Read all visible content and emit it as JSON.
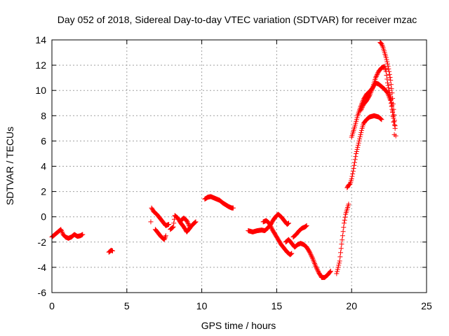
{
  "chart_data": {
    "type": "scatter",
    "title": "Day 052 of 2018, Sidereal Day-to-day VTEC variation (SDTVAR) for receiver mzac",
    "xlabel": "GPS time / hours",
    "ylabel": "SDTVAR / TECUs",
    "xlim": [
      0,
      25
    ],
    "ylim": [
      -6,
      14
    ],
    "xticks": [
      0,
      5,
      10,
      15,
      20,
      25
    ],
    "yticks": [
      -6,
      -4,
      -2,
      0,
      2,
      4,
      6,
      8,
      10,
      12,
      14
    ],
    "grid": true,
    "marker": "+",
    "color": "#ff0000",
    "segments": [
      [
        [
          0.0,
          -1.6
        ],
        [
          0.3,
          -1.3
        ],
        [
          0.5,
          -1.1
        ],
        [
          0.6,
          -1.0
        ],
        [
          0.75,
          -1.4
        ],
        [
          0.9,
          -1.6
        ],
        [
          1.1,
          -1.7
        ],
        [
          1.3,
          -1.6
        ],
        [
          1.5,
          -1.4
        ],
        [
          1.7,
          -1.55
        ],
        [
          1.9,
          -1.5
        ],
        [
          2.05,
          -1.4
        ]
      ],
      [
        [
          3.8,
          -2.8
        ],
        [
          3.95,
          -2.65
        ],
        [
          4.05,
          -2.7
        ]
      ],
      [
        [
          6.6,
          -0.4
        ],
        [
          6.65,
          0.7
        ],
        [
          6.8,
          0.4
        ],
        [
          7.0,
          0.2
        ],
        [
          7.2,
          -0.1
        ],
        [
          7.4,
          -0.4
        ],
        [
          7.6,
          -0.7
        ],
        [
          7.8,
          -0.6
        ]
      ],
      [
        [
          6.9,
          -1.0
        ],
        [
          7.1,
          -1.3
        ],
        [
          7.3,
          -1.6
        ],
        [
          7.5,
          -1.8
        ],
        [
          7.6,
          -1.5
        ]
      ],
      [
        [
          7.9,
          -1.0
        ],
        [
          8.1,
          -0.8
        ],
        [
          8.2,
          0.1
        ],
        [
          8.4,
          -0.1
        ],
        [
          8.6,
          -0.5
        ],
        [
          8.8,
          -0.8
        ],
        [
          9.0,
          -1.2
        ],
        [
          9.2,
          -0.9
        ],
        [
          9.4,
          -0.6
        ],
        [
          9.6,
          -0.4
        ]
      ],
      [
        [
          8.6,
          -0.3
        ],
        [
          8.8,
          -0.1
        ],
        [
          9.0,
          -0.3
        ],
        [
          9.2,
          -0.8
        ]
      ],
      [
        [
          10.2,
          1.4
        ],
        [
          10.4,
          1.55
        ],
        [
          10.6,
          1.6
        ],
        [
          10.8,
          1.5
        ],
        [
          11.0,
          1.4
        ],
        [
          11.2,
          1.3
        ],
        [
          11.4,
          1.1
        ],
        [
          11.6,
          0.95
        ],
        [
          11.8,
          0.8
        ],
        [
          12.0,
          0.7
        ],
        [
          12.1,
          0.7
        ]
      ],
      [
        [
          13.1,
          -1.1
        ],
        [
          13.4,
          -1.2
        ],
        [
          13.7,
          -1.1
        ],
        [
          14.0,
          -1.05
        ],
        [
          14.2,
          -1.1
        ],
        [
          14.4,
          -0.9
        ],
        [
          14.6,
          -0.6
        ],
        [
          14.8,
          -0.2
        ],
        [
          15.0,
          0.1
        ],
        [
          15.1,
          0.2
        ],
        [
          15.3,
          0.0
        ],
        [
          15.5,
          -0.3
        ],
        [
          15.7,
          -0.6
        ],
        [
          15.8,
          -0.5
        ]
      ],
      [
        [
          14.1,
          -0.4
        ],
        [
          14.3,
          -0.3
        ],
        [
          14.5,
          -0.5
        ],
        [
          14.7,
          -1.0
        ],
        [
          14.9,
          -1.4
        ],
        [
          15.1,
          -1.8
        ],
        [
          15.3,
          -2.2
        ],
        [
          15.5,
          -2.5
        ],
        [
          15.7,
          -2.8
        ],
        [
          15.9,
          -3.0
        ],
        [
          16.0,
          -2.9
        ]
      ],
      [
        [
          15.6,
          -2.0
        ],
        [
          15.8,
          -1.8
        ],
        [
          16.0,
          -2.1
        ],
        [
          16.2,
          -2.4
        ],
        [
          16.4,
          -2.2
        ],
        [
          16.6,
          -2.1
        ],
        [
          16.8,
          -2.2
        ],
        [
          17.0,
          -2.4
        ],
        [
          17.2,
          -2.8
        ],
        [
          17.4,
          -3.3
        ],
        [
          17.6,
          -3.9
        ],
        [
          17.8,
          -4.4
        ],
        [
          18.0,
          -4.8
        ],
        [
          18.2,
          -4.8
        ],
        [
          18.4,
          -4.6
        ],
        [
          18.6,
          -4.3
        ]
      ],
      [
        [
          16.1,
          -1.6
        ],
        [
          16.3,
          -1.4
        ],
        [
          16.5,
          -1.1
        ],
        [
          16.7,
          -0.9
        ],
        [
          16.9,
          -0.8
        ],
        [
          17.0,
          -0.7
        ]
      ],
      [
        [
          19.0,
          -4.5
        ],
        [
          19.1,
          -4.0
        ],
        [
          19.2,
          -3.5
        ],
        [
          19.3,
          -2.5
        ],
        [
          19.4,
          -1.5
        ],
        [
          19.5,
          -0.5
        ],
        [
          19.6,
          0.2
        ],
        [
          19.7,
          0.6
        ],
        [
          19.8,
          1.0
        ]
      ],
      [
        [
          19.7,
          2.3
        ],
        [
          19.8,
          2.5
        ],
        [
          19.9,
          2.6
        ],
        [
          20.0,
          3.0
        ],
        [
          20.1,
          3.6
        ],
        [
          20.2,
          4.3
        ],
        [
          20.3,
          5.0
        ],
        [
          20.4,
          5.5
        ],
        [
          20.5,
          6.0
        ],
        [
          20.6,
          6.5
        ],
        [
          20.7,
          7.0
        ],
        [
          20.8,
          7.4
        ],
        [
          21.0,
          7.7
        ],
        [
          21.2,
          7.9
        ],
        [
          21.5,
          8.0
        ],
        [
          21.8,
          7.9
        ],
        [
          22.0,
          7.7
        ]
      ],
      [
        [
          20.0,
          6.3
        ],
        [
          20.2,
          7.1
        ],
        [
          20.4,
          8.0
        ],
        [
          20.6,
          8.7
        ],
        [
          20.8,
          9.3
        ],
        [
          21.0,
          9.7
        ],
        [
          21.2,
          9.9
        ],
        [
          21.4,
          10.2
        ],
        [
          21.6,
          10.6
        ],
        [
          21.8,
          10.5
        ],
        [
          22.0,
          10.3
        ],
        [
          22.2,
          10.1
        ],
        [
          22.4,
          9.8
        ],
        [
          22.6,
          9.2
        ],
        [
          22.7,
          8.5
        ],
        [
          22.8,
          7.8
        ],
        [
          22.9,
          7.0
        ]
      ],
      [
        [
          20.6,
          8.4
        ],
        [
          20.8,
          8.9
        ],
        [
          21.0,
          9.2
        ],
        [
          21.2,
          9.6
        ],
        [
          21.4,
          10.2
        ],
        [
          21.6,
          11.0
        ],
        [
          21.8,
          11.5
        ],
        [
          22.0,
          11.8
        ],
        [
          22.2,
          11.9
        ],
        [
          22.3,
          11.5
        ],
        [
          22.4,
          10.6
        ],
        [
          22.5,
          10.0
        ],
        [
          22.6,
          9.5
        ],
        [
          22.7,
          8.8
        ],
        [
          22.8,
          7.5
        ],
        [
          22.85,
          6.5
        ]
      ],
      [
        [
          21.9,
          13.8
        ],
        [
          22.0,
          13.7
        ],
        [
          22.1,
          13.4
        ],
        [
          22.2,
          13.0
        ],
        [
          22.3,
          12.6
        ],
        [
          22.4,
          12.1
        ],
        [
          22.5,
          11.5
        ],
        [
          22.6,
          10.8
        ],
        [
          22.7,
          9.8
        ],
        [
          22.8,
          8.5
        ],
        [
          22.9,
          7.2
        ],
        [
          22.95,
          6.4
        ]
      ]
    ]
  }
}
